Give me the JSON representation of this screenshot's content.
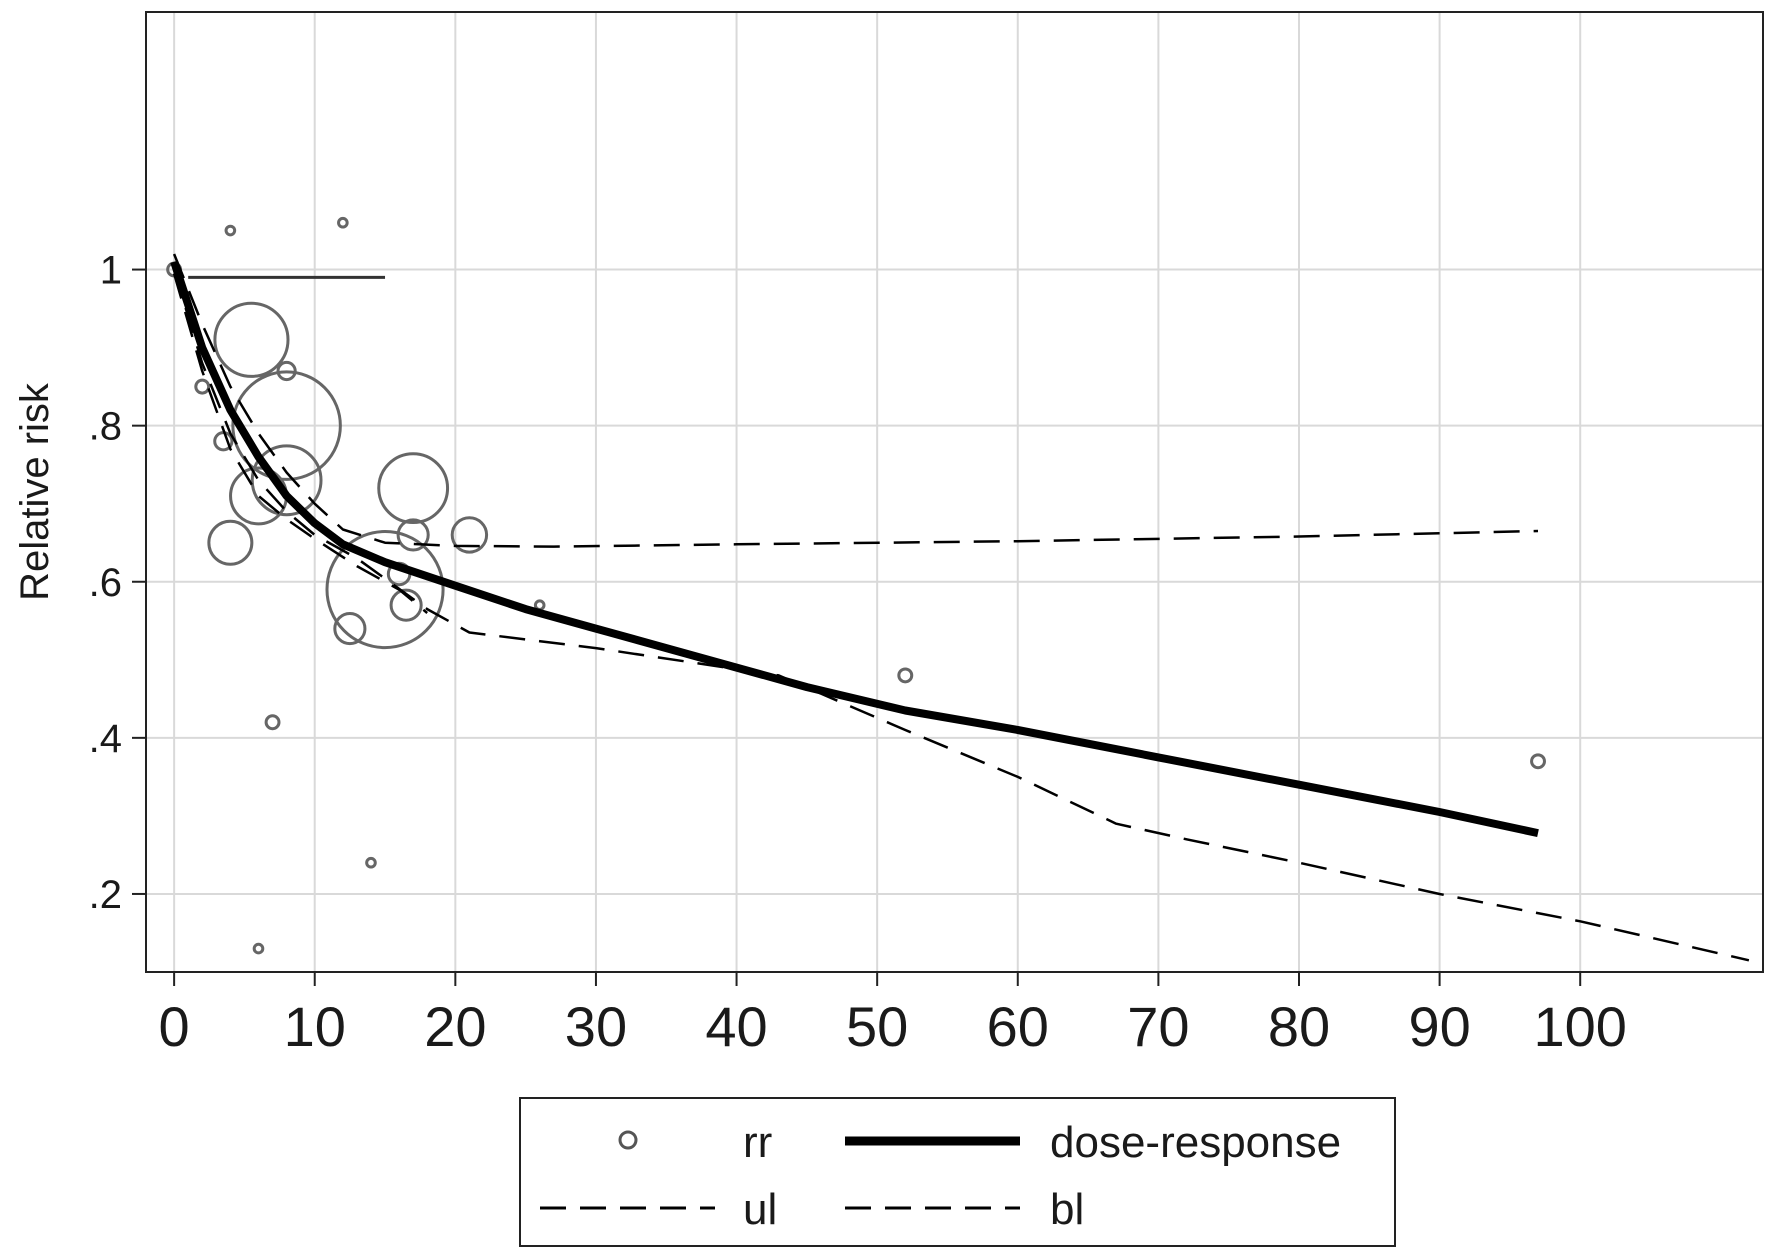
{
  "chart_data": {
    "type": "scatter",
    "title": "",
    "xlabel": "",
    "ylabel": "Relative risk",
    "xlim": [
      -2,
      113
    ],
    "ylim": [
      0.1,
      1.33
    ],
    "x_ticks": [
      0,
      10,
      20,
      30,
      40,
      50,
      60,
      70,
      80,
      90,
      100
    ],
    "x_tick_labels": [
      "0",
      "10",
      "20",
      "30",
      "40",
      "50",
      "60",
      "70",
      "80",
      "90",
      "100"
    ],
    "y_ticks": [
      0.2,
      0.4,
      0.6,
      0.8,
      1.0
    ],
    "y_tick_labels": [
      ".2",
      ".4",
      ".6",
      ".8",
      "1"
    ],
    "grid": true,
    "legend_position": "bottom",
    "legend": [
      {
        "key": "rr",
        "label": "rr",
        "symbol": "circle"
      },
      {
        "key": "dose_response",
        "label": "dose-response",
        "symbol": "thick-line"
      },
      {
        "key": "ul",
        "label": "ul",
        "symbol": "dashed-line"
      },
      {
        "key": "bl",
        "label": "bl",
        "symbol": "dashed-line"
      }
    ],
    "rr_points": [
      {
        "x": 0,
        "y": 1.0,
        "weight": 1.5
      },
      {
        "x": 2,
        "y": 0.85,
        "weight": 1.5
      },
      {
        "x": 3.5,
        "y": 0.78,
        "weight": 2
      },
      {
        "x": 4,
        "y": 1.05,
        "weight": 1
      },
      {
        "x": 4,
        "y": 0.65,
        "weight": 5
      },
      {
        "x": 5.5,
        "y": 0.91,
        "weight": 8.5
      },
      {
        "x": 6,
        "y": 0.71,
        "weight": 6.5
      },
      {
        "x": 6,
        "y": 0.13,
        "weight": 1
      },
      {
        "x": 7,
        "y": 0.42,
        "weight": 1.5
      },
      {
        "x": 8,
        "y": 0.87,
        "weight": 2
      },
      {
        "x": 8,
        "y": 0.8,
        "weight": 12.5
      },
      {
        "x": 8,
        "y": 0.73,
        "weight": 8
      },
      {
        "x": 12,
        "y": 1.06,
        "weight": 1
      },
      {
        "x": 14,
        "y": 0.24,
        "weight": 1
      },
      {
        "x": 12.5,
        "y": 0.54,
        "weight": 3.5
      },
      {
        "x": 15,
        "y": 0.59,
        "weight": 13.5
      },
      {
        "x": 16,
        "y": 0.61,
        "weight": 2.5
      },
      {
        "x": 16.5,
        "y": 0.57,
        "weight": 3.5
      },
      {
        "x": 17,
        "y": 0.66,
        "weight": 3.5
      },
      {
        "x": 17,
        "y": 0.72,
        "weight": 8
      },
      {
        "x": 21,
        "y": 0.66,
        "weight": 4
      },
      {
        "x": 26,
        "y": 0.57,
        "weight": 1
      },
      {
        "x": 52,
        "y": 0.48,
        "weight": 1.5
      },
      {
        "x": 97,
        "y": 0.37,
        "weight": 1.5
      }
    ],
    "series": [
      {
        "name": "dose-response",
        "style": "thick-solid",
        "x": [
          0,
          2,
          4,
          6,
          8,
          10,
          12,
          15,
          20,
          25,
          30,
          35,
          40,
          45,
          52,
          60,
          70,
          80,
          90,
          97
        ],
        "y": [
          1.01,
          0.9,
          0.82,
          0.76,
          0.71,
          0.675,
          0.648,
          0.625,
          0.595,
          0.565,
          0.54,
          0.515,
          0.49,
          0.465,
          0.435,
          0.41,
          0.375,
          0.34,
          0.305,
          0.278
        ]
      },
      {
        "name": "ul",
        "style": "dashed",
        "x": [
          0,
          2,
          4,
          6,
          8,
          10,
          12,
          15,
          20,
          27,
          40,
          60,
          80,
          97
        ],
        "y": [
          1.02,
          0.93,
          0.85,
          0.79,
          0.74,
          0.7,
          0.667,
          0.65,
          0.646,
          0.645,
          0.648,
          0.652,
          0.658,
          0.665
        ]
      },
      {
        "name": "bl",
        "style": "dashed",
        "x": [
          0,
          2,
          4,
          6,
          8,
          10,
          13,
          18,
          21,
          30,
          43,
          52,
          60,
          67,
          72,
          80,
          90,
          100,
          112
        ],
        "y": [
          1.0,
          0.88,
          0.79,
          0.73,
          0.69,
          0.66,
          0.63,
          0.565,
          0.535,
          0.515,
          0.48,
          0.41,
          0.35,
          0.29,
          0.27,
          0.24,
          0.2,
          0.165,
          0.115
        ]
      },
      {
        "name": "bl",
        "style": "dashed",
        "x": [
          0,
          2,
          4,
          6,
          8,
          10,
          13,
          16,
          18
        ],
        "y": [
          0.995,
          0.87,
          0.77,
          0.71,
          0.68,
          0.655,
          0.62,
          0.59,
          0.56
        ]
      }
    ],
    "reference_segment": {
      "x": [
        1,
        15
      ],
      "y": [
        0.99,
        0.99
      ]
    }
  }
}
